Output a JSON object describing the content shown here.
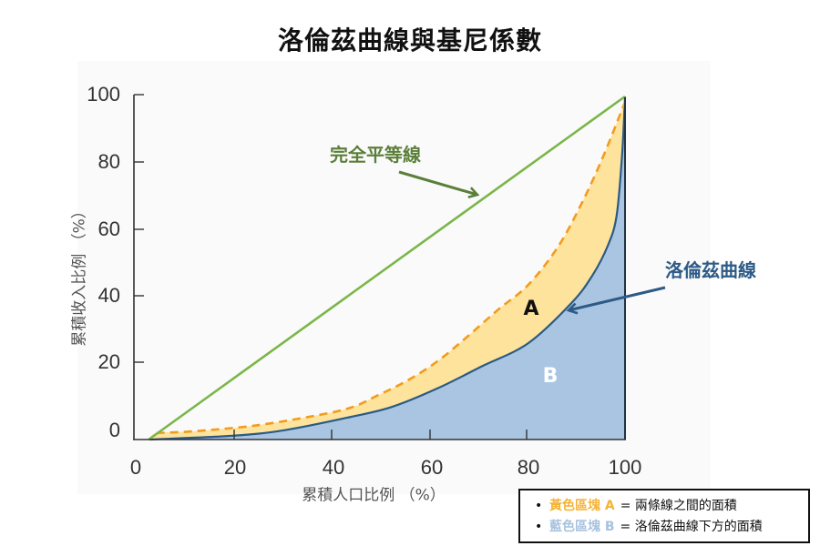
{
  "title": "洛倫茲曲線與基尼係數",
  "axes": {
    "x_label": "累積人口比例 （%）",
    "y_label": "累積收入比例 （%）",
    "x_ticks": [
      "0",
      "20",
      "40",
      "60",
      "80",
      "100"
    ],
    "y_ticks": [
      "100",
      "80",
      "60",
      "40",
      "20",
      "0"
    ]
  },
  "annotations": {
    "equality_line": "完全平等線",
    "lorenz_curve": "洛倫茲曲線",
    "area_a": "A",
    "area_b": "B"
  },
  "legend": {
    "items": [
      {
        "bullet": "•",
        "key": "黃色區塊 A",
        "text": "= 兩條線之間的面積",
        "color": "#f5b335"
      },
      {
        "bullet": "•",
        "key": "藍色區塊 B",
        "text": "= 洛倫茲曲線下方的面積",
        "color": "#a7c2de"
      }
    ]
  },
  "colors": {
    "equality_line": "#7ab648",
    "dashed_curve": "#f29c1f",
    "lorenz_line": "#2b5a85",
    "area_a_fill": "#fde39c",
    "area_b_fill": "#a9c5e2",
    "equality_label": "#5b7f3a",
    "lorenz_label": "#2d5a86"
  },
  "chart_data": {
    "type": "area",
    "title": "洛倫茲曲線與基尼係數",
    "xlabel": "累積人口比例 （%）",
    "ylabel": "累積收入比例 （%）",
    "xlim": [
      0,
      100
    ],
    "ylim": [
      0,
      100
    ],
    "x_ticks": [
      0,
      20,
      40,
      60,
      80,
      100
    ],
    "y_ticks": [
      0,
      20,
      40,
      60,
      80,
      100
    ],
    "grid": false,
    "legend_position": "bottom-right (outside plot)",
    "series": [
      {
        "role": "equality",
        "name": "完全平等線",
        "style": "solid",
        "color": "#7ab648",
        "x": [
          3,
          100
        ],
        "y": [
          0,
          100
        ]
      },
      {
        "role": "dashed",
        "name": "虛線 (區塊 A 上緣)",
        "style": "dashed",
        "color": "#f29c1f",
        "x": [
          4.6,
          12.1,
          24.3,
          36.7,
          44.2,
          49.4,
          55.7,
          61.8,
          67.9,
          74.2,
          80.3,
          86.5,
          91.5,
          95.7,
          100
        ],
        "y": [
          1.9,
          2.4,
          4.0,
          6.9,
          9.3,
          12.7,
          17.2,
          22.8,
          30.0,
          37.9,
          45.1,
          56.5,
          69.8,
          83.0,
          98.4
        ]
      },
      {
        "role": "lorenz",
        "name": "洛倫茲曲線",
        "style": "solid",
        "color": "#2b5a85",
        "x": [
          3.3,
          20.0,
          30.6,
          44.2,
          52.5,
          61.8,
          71.1,
          80.3,
          89.1,
          93.3,
          96.5,
          98.3,
          99.4,
          100
        ],
        "y": [
          0,
          1.1,
          2.7,
          6.6,
          9.5,
          14.9,
          21.5,
          28.1,
          39.8,
          47.7,
          56.5,
          65.3,
          83.0,
          100
        ]
      }
    ],
    "areas": [
      {
        "label": "A",
        "name": "黃色區塊 A",
        "between": [
          "dashed",
          "lorenz"
        ],
        "color": "#fde39c"
      },
      {
        "label": "B",
        "name": "藍色區塊 B",
        "under": "lorenz",
        "color": "#a9c5e2"
      }
    ],
    "annotations": [
      {
        "text": "完全平等線",
        "arrow_to": "equality"
      },
      {
        "text": "洛倫茲曲線",
        "arrow_to": "lorenz"
      },
      {
        "text": "A",
        "at": [
          80,
          38
        ]
      },
      {
        "text": "B",
        "at": [
          85,
          18
        ]
      }
    ]
  }
}
